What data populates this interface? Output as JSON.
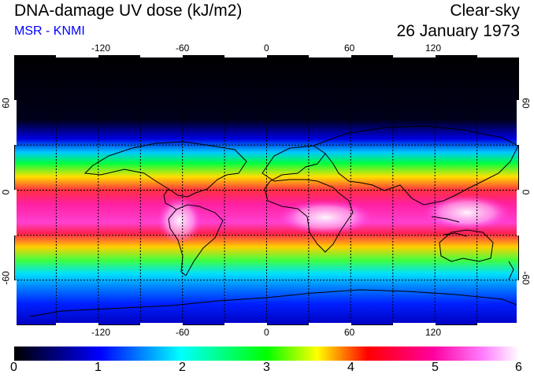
{
  "header": {
    "title": "DNA-damage UV dose (kJ/m2)",
    "organization": "MSR - KNMI",
    "sky_condition": "Clear-sky",
    "date": "26 January 1973"
  },
  "map": {
    "longitude_ticks": [
      "-120",
      "-60",
      "0",
      "60",
      "120"
    ],
    "latitude_ticks_left": [
      "60",
      "0",
      "-60"
    ],
    "latitude_ticks_right": [
      "60",
      "0",
      "-60"
    ],
    "longitude_range": [
      -180,
      180
    ],
    "latitude_range": [
      -90,
      90
    ],
    "gridline_longitudes": [
      -150,
      -120,
      -90,
      -60,
      -30,
      0,
      30,
      60,
      90,
      120,
      150
    ],
    "gridline_latitudes": [
      -60,
      -30,
      0,
      30,
      60
    ]
  },
  "colorbar": {
    "labels": [
      "0",
      "1",
      "2",
      "3",
      "4",
      "5",
      "6"
    ],
    "colors": [
      "#000000",
      "#0000ff",
      "#00ffff",
      "#00ff00",
      "#ffff00",
      "#ff0040",
      "#ff00ff",
      "#ffffff"
    ]
  }
}
